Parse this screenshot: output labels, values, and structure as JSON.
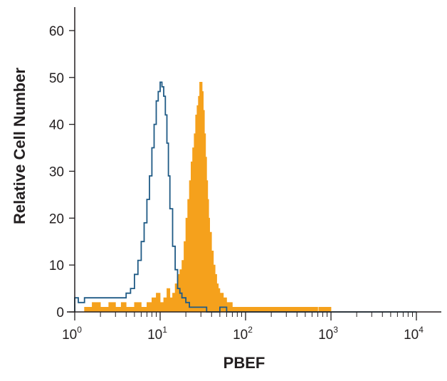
{
  "chart_data": {
    "type": "histogram",
    "xlabel": "PBEF",
    "ylabel": "Relative Cell Number",
    "x_scale": "log",
    "xlim": [
      1,
      10000
    ],
    "ylim": [
      0,
      65
    ],
    "y_ticks": [
      0,
      10,
      20,
      30,
      40,
      50,
      60
    ],
    "x_ticks": [
      {
        "value": 1,
        "base": "10",
        "exp": "0"
      },
      {
        "value": 10,
        "base": "10",
        "exp": "1"
      },
      {
        "value": 100,
        "base": "10",
        "exp": "2"
      },
      {
        "value": 1000,
        "base": "10",
        "exp": "3"
      },
      {
        "value": 10000,
        "base": "10",
        "exp": "4"
      }
    ],
    "grid": false,
    "series": [
      {
        "style": "filled",
        "color": "#f5a11c",
        "x": [
          1,
          1.3,
          1.6,
          2,
          2.5,
          3,
          3.5,
          4,
          5,
          6,
          7,
          8,
          9,
          10,
          11,
          12,
          13,
          14,
          15,
          16,
          17,
          18,
          19,
          20,
          21,
          22,
          23,
          24,
          25,
          26,
          27,
          28,
          29,
          30,
          31,
          32,
          33,
          34,
          35,
          36,
          37,
          38,
          40,
          42,
          44,
          46,
          48,
          50,
          55,
          60,
          70,
          80,
          100,
          130,
          170,
          250,
          350,
          500,
          700,
          720,
          1000,
          10000
        ],
        "y": [
          0,
          1,
          2,
          1,
          2,
          1,
          2,
          1,
          2,
          1,
          2,
          3,
          4,
          2,
          3,
          5,
          3,
          4,
          6,
          8,
          9,
          11,
          15,
          20,
          24,
          28,
          32,
          35,
          38,
          42,
          44,
          46,
          49,
          49,
          47,
          43,
          38,
          33,
          28,
          24,
          20,
          17,
          13,
          10,
          8,
          6,
          5,
          4,
          3,
          2,
          1,
          1,
          1,
          1,
          1,
          1,
          1,
          1,
          0,
          1,
          0,
          0
        ]
      },
      {
        "style": "outline",
        "color": "#1f5a85",
        "x": [
          1,
          1.1,
          1.3,
          1.6,
          2,
          2.5,
          3,
          3.5,
          4,
          4.5,
          5,
          5.5,
          6,
          6.5,
          7,
          7.5,
          8,
          8.5,
          9,
          9.5,
          10,
          10.5,
          11,
          11.5,
          12,
          12.5,
          13,
          14,
          15,
          16,
          17,
          18,
          20,
          22,
          25,
          30,
          35,
          40,
          50,
          60,
          80,
          100,
          10000
        ],
        "y": [
          3,
          2,
          3,
          3,
          3,
          3,
          3,
          3,
          4,
          5,
          8,
          11,
          15,
          19,
          24,
          29,
          35,
          40,
          45,
          47,
          49,
          48,
          46,
          42,
          36,
          29,
          22,
          14,
          9,
          5,
          4,
          3,
          2,
          1,
          1,
          1,
          0,
          0,
          1,
          0,
          0,
          0,
          0
        ]
      }
    ]
  }
}
